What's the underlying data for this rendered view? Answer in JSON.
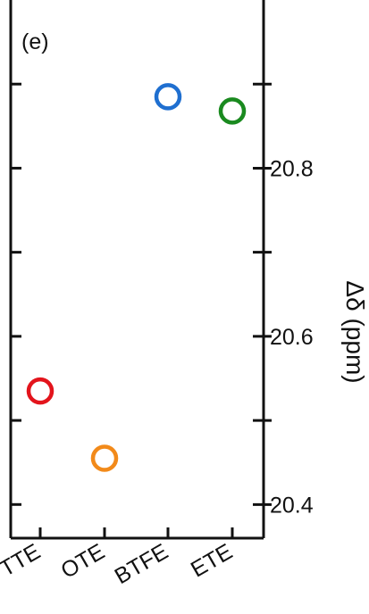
{
  "chart_data": {
    "type": "scatter",
    "panel_label": "(e)",
    "categories": [
      "TTE",
      "OTE",
      "BTFE",
      "ETE"
    ],
    "values": [
      20.535,
      20.455,
      20.885,
      20.868
    ],
    "colors": [
      "#e3141c",
      "#f28a1a",
      "#1f6fd0",
      "#1a8a1f"
    ],
    "marker": "open-circle",
    "ylabel": "Δδ (ppm)",
    "y_axis_side": "right",
    "ylim": [
      20.36,
      21.0
    ],
    "y_ticks": [
      20.4,
      20.5,
      20.6,
      20.7,
      20.8,
      20.9
    ],
    "y_tick_labels": [
      "20.4",
      "",
      "20.6",
      "",
      "20.8",
      ""
    ],
    "grid": false,
    "legend": "none"
  }
}
